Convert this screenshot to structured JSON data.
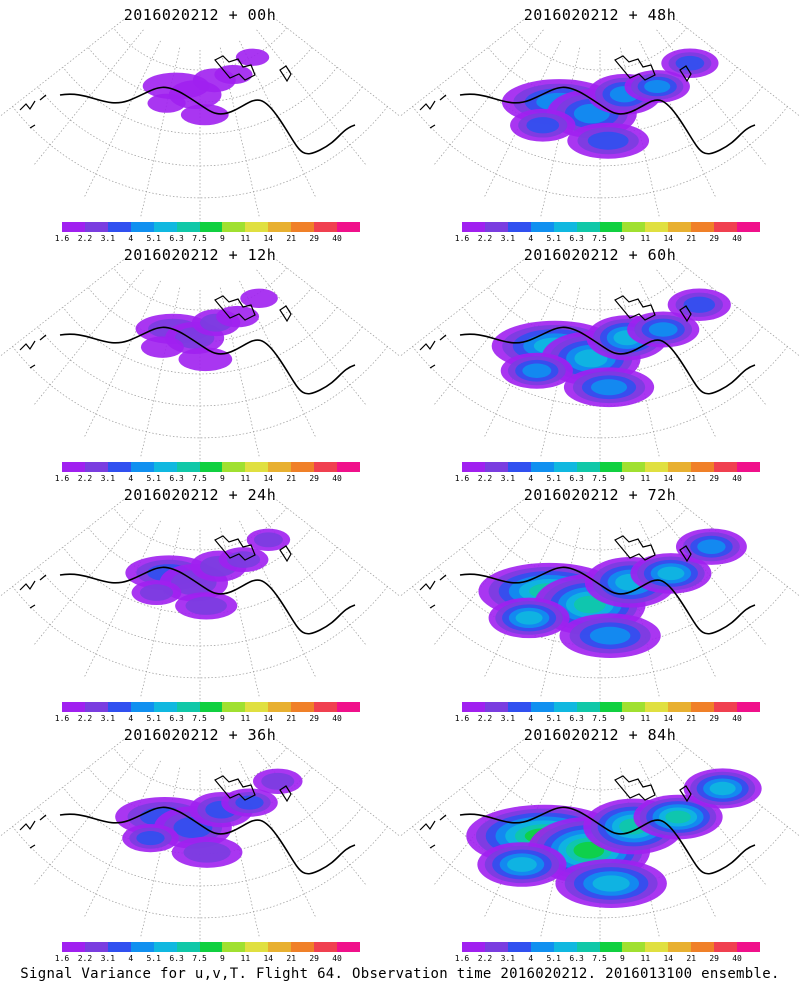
{
  "colorbar": {
    "colors": [
      "#a020f0",
      "#7a3de0",
      "#3050f0",
      "#1090f0",
      "#10b8e0",
      "#10c8a8",
      "#10d040",
      "#a0e030",
      "#e0e040",
      "#e8b030",
      "#f08028",
      "#f04050",
      "#f0108a"
    ],
    "labels": [
      "1.6",
      "2.2",
      "3.1",
      "4",
      "5.1",
      "6.3",
      "7.5",
      "9",
      "11",
      "14",
      "21",
      "29",
      "40"
    ]
  },
  "panels": [
    {
      "title": "2016020212 + 00h",
      "level": 0.15
    },
    {
      "title": "2016020212 + 48h",
      "level": 0.55
    },
    {
      "title": "2016020212 + 12h",
      "level": 0.22
    },
    {
      "title": "2016020212 + 60h",
      "level": 0.65
    },
    {
      "title": "2016020212 + 24h",
      "level": 0.32
    },
    {
      "title": "2016020212 + 72h",
      "level": 0.78
    },
    {
      "title": "2016020212 + 36h",
      "level": 0.42
    },
    {
      "title": "2016020212 + 84h",
      "level": 0.9
    }
  ],
  "footer": "Signal Variance for u,v,T. Flight 64. Observation time 2016020212. 2016013100 ensemble."
}
